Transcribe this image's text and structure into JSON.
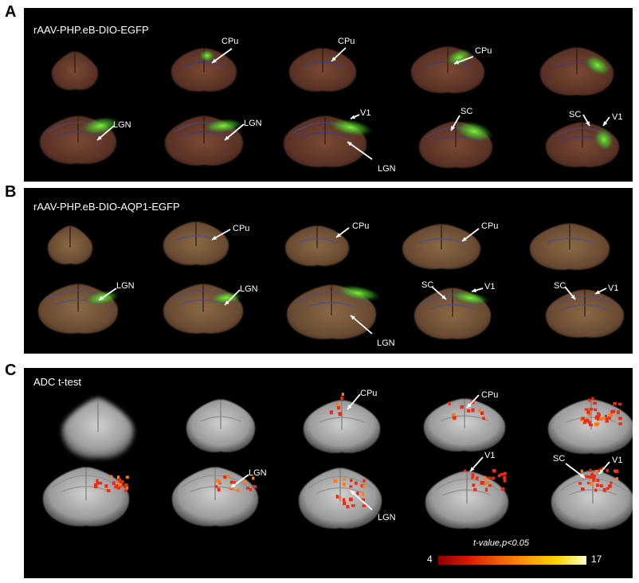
{
  "panels": [
    {
      "letter": "A",
      "title": "rAAV-PHP.eB-DIO-EGFP"
    },
    {
      "letter": "B",
      "title": "rAAV-PHP.eB-DIO-AQP1-EGFP"
    },
    {
      "letter": "C",
      "title": "ADC t-test"
    }
  ],
  "region_labels": {
    "cpu": "CPu",
    "lgn": "LGN",
    "v1": "V1",
    "sc": "SC"
  },
  "colorbar": {
    "title": "t-value,p<0.05",
    "min": "4",
    "max": "17",
    "colors": [
      "#8b0000",
      "#d81b00",
      "#f05a00",
      "#ff9a00",
      "#ffd400",
      "#ffffc0"
    ]
  },
  "colors": {
    "background": "#000000",
    "egfp_signal": "#5ad12a",
    "tissue_a": "#6b3a2a",
    "tissue_b": "#7b5a3a",
    "mri": "#c8c8c8",
    "hotspot": "#ff3a1a"
  }
}
